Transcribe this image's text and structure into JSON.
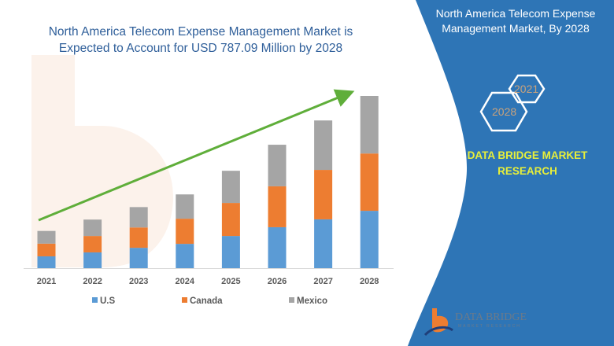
{
  "header": {
    "title_line1": "North America Telecom Expense Management Market is",
    "title_line2": "Expected to Account for USD 787.09 Million by 2028"
  },
  "side_panel": {
    "title_line1": "North America Telecom Expense",
    "title_line2": "Management Market, By 2028",
    "hex_start": "2021",
    "hex_end": "2028",
    "brand_line1": "DATA BRIDGE MARKET",
    "brand_line2": "RESEARCH",
    "logo_text": "DATA BRIDGE",
    "logo_subtext": "MARKET RESEARCH",
    "panel_color": "#2e75b6",
    "brand_color": "#e8ef3a"
  },
  "chart_data": {
    "type": "bar",
    "stacked": true,
    "title": "",
    "xlabel": "",
    "ylabel": "",
    "categories": [
      "2021",
      "2022",
      "2023",
      "2024",
      "2025",
      "2026",
      "2027",
      "2028"
    ],
    "series": [
      {
        "name": "U.S",
        "color": "#5b9bd5",
        "values": [
          54,
          72,
          93,
          111,
          147,
          187,
          223,
          262
        ]
      },
      {
        "name": "Canada",
        "color": "#ed7d31",
        "values": [
          58,
          75,
          93,
          115,
          151,
          187,
          226,
          262
        ]
      },
      {
        "name": "Mexico",
        "color": "#a5a5a5",
        "values": [
          58,
          75,
          93,
          111,
          147,
          190,
          226,
          263
        ]
      }
    ],
    "ylim": [
      0,
      800
    ],
    "grid": false,
    "legend": "bottom",
    "trend_arrow_color": "#5fae3a"
  }
}
